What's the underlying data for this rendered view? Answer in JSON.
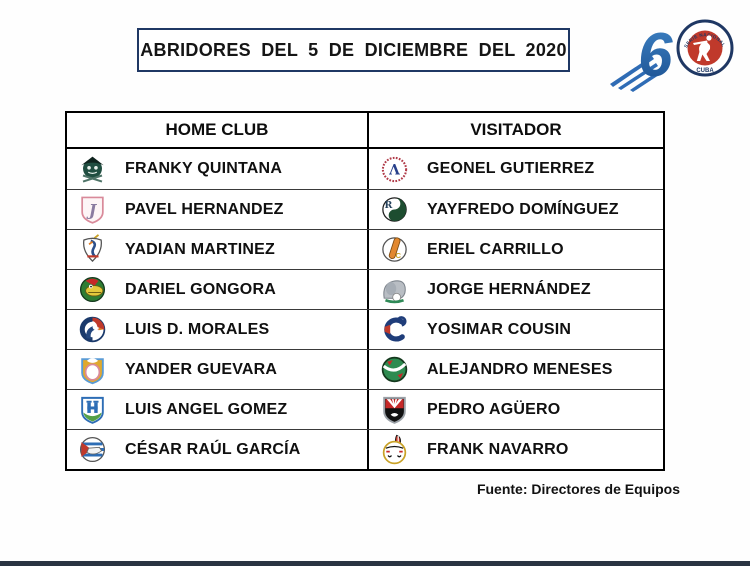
{
  "title": "ABRIDORES DEL 5 DE DICIEMBRE DEL 2020",
  "logo": {
    "six": "6",
    "ring_text": "SERIE NACIONAL DE BEISBOL",
    "country": "CUBA"
  },
  "table": {
    "headers": [
      "HOME CLUB",
      "VISITADOR"
    ],
    "rows": [
      {
        "home": {
          "player": "FRANKY QUINTANA",
          "team_icon": "pirate-badge"
        },
        "visitor": {
          "player": "GEONEL GUTIERREZ",
          "team_icon": "lambda-laurel-badge"
        }
      },
      {
        "home": {
          "player": "PAVEL HERNANDEZ",
          "team_icon": "pink-shield-j-badge"
        },
        "visitor": {
          "player": "YAYFREDO DOMÍNGUEZ",
          "team_icon": "leaf-yinyang-badge"
        }
      },
      {
        "home": {
          "player": "YADIAN MARTINEZ",
          "team_icon": "rooster-badge"
        },
        "visitor": {
          "player": "ERIEL CARRILLO",
          "team_icon": "vc-bat-badge"
        }
      },
      {
        "home": {
          "player": "DARIEL GONGORA",
          "team_icon": "crocodile-badge"
        },
        "visitor": {
          "player": "JORGE HERNÁNDEZ",
          "team_icon": "elephant-badge"
        }
      },
      {
        "home": {
          "player": "LUIS D. MORALES",
          "team_icon": "eagle-badge"
        },
        "visitor": {
          "player": "YOSIMAR COUSIN",
          "team_icon": "c-swirl-badge"
        }
      },
      {
        "home": {
          "player": "YANDER GUEVARA",
          "team_icon": "gold-crest-badge"
        },
        "visitor": {
          "player": "ALEJANDRO MENESES",
          "team_icon": "green-ball-badge"
        }
      },
      {
        "home": {
          "player": "LUIS ANGEL GOMEZ",
          "team_icon": "castle-shield-badge"
        },
        "visitor": {
          "player": "PEDRO AGÜERO",
          "team_icon": "wasp-shield-badge"
        }
      },
      {
        "home": {
          "player": "CÉSAR RAÚL GARCÍA",
          "team_icon": "flag-boat-badge"
        },
        "visitor": {
          "player": "FRANK NAVARRO",
          "team_icon": "feather-face-badge"
        }
      }
    ]
  },
  "footer": {
    "source": "Fuente: Directores de Equipos"
  },
  "colors": {
    "accent_navy": "#1f3864",
    "bottom_bar": "#2a3442",
    "logo_blue": "#2f6cb5",
    "logo_red": "#c0392b"
  }
}
